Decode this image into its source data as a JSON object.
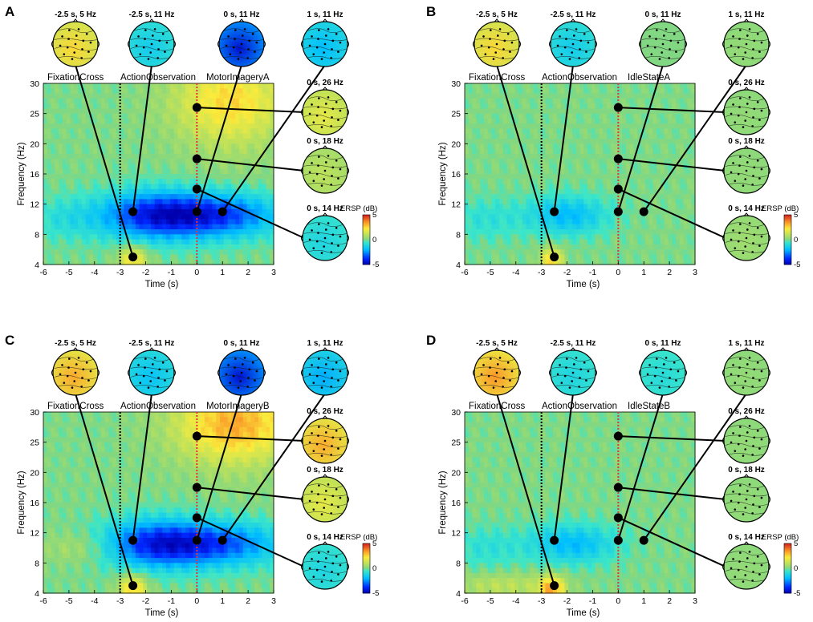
{
  "colors": {
    "zero": "#7fd49a",
    "marker": "#000000",
    "onset_line": "#e8323c",
    "fixation_line": "#000000"
  },
  "chart_data": [
    {
      "panel": "A",
      "type": "heatmap",
      "condition_labels": [
        "FixationCross",
        "ActionObservation",
        "MotorImageryA"
      ],
      "xlabel": "Time (s)",
      "ylabel": "Frequency (Hz)",
      "xlim": [
        -6,
        3
      ],
      "x_ticks": [
        "-6",
        "-5",
        "-4",
        "-3",
        "-2",
        "-1",
        "0",
        "1",
        "2",
        "3"
      ],
      "y_ticks": [
        "4",
        "8",
        "12",
        "16",
        "20",
        "25",
        "30"
      ],
      "colorbar": {
        "title": "ERSP (dB)",
        "ticks": [
          "5",
          "0",
          "-5"
        ],
        "range": [
          -5,
          5
        ]
      },
      "vertical_lines": [
        {
          "t": -3,
          "style": "black-dotted"
        },
        {
          "t": 0,
          "style": "red-dotted"
        }
      ],
      "blobs": [
        {
          "t": -1.5,
          "f": 10.5,
          "sdt": 1.6,
          "sdf": 2.2,
          "amp": -4.2
        },
        {
          "t": 1.2,
          "f": 10.5,
          "sdt": 1.6,
          "sdf": 2.0,
          "amp": -2.8
        },
        {
          "t": 1.3,
          "f": 27,
          "sdt": 1.5,
          "sdf": 5,
          "amp": 2.5
        },
        {
          "t": -2.5,
          "f": 4.5,
          "sdt": 0.4,
          "sdf": 1.4,
          "amp": 2.2
        },
        {
          "t": -5.2,
          "f": 10,
          "sdt": 1.0,
          "sdf": 2.0,
          "amp": -0.8
        }
      ],
      "topomaps": [
        {
          "title": "-2.5 s, 5 Hz",
          "t": -2.5,
          "f": 5,
          "value": 2.5
        },
        {
          "title": "-2.5 s, 11 Hz",
          "t": -2.5,
          "f": 11,
          "value": -1.5
        },
        {
          "title": "0 s, 11 Hz",
          "t": 0,
          "f": 11,
          "value": -4.5
        },
        {
          "title": "1 s, 11 Hz",
          "t": 1,
          "f": 11,
          "value": -2.0
        },
        {
          "title": "0 s, 26 Hz",
          "t": 0,
          "f": 26,
          "value": 1.8
        },
        {
          "title": "0 s, 18 Hz",
          "t": 0,
          "f": 18,
          "value": 1.0
        },
        {
          "title": "0 s, 14 Hz",
          "t": 0,
          "f": 14,
          "value": -1.2
        }
      ]
    },
    {
      "panel": "B",
      "type": "heatmap",
      "condition_labels": [
        "FixationCross",
        "ActionObservation",
        "IdleStateA"
      ],
      "xlabel": "Time (s)",
      "ylabel": "Frequency (Hz)",
      "xlim": [
        -6,
        3
      ],
      "x_ticks": [
        "-6",
        "-5",
        "-4",
        "-3",
        "-2",
        "-1",
        "0",
        "1",
        "2",
        "3"
      ],
      "y_ticks": [
        "4",
        "8",
        "12",
        "16",
        "20",
        "25",
        "30"
      ],
      "colorbar": {
        "title": "ERSP (dB)",
        "ticks": [
          "5",
          "0",
          "-5"
        ],
        "range": [
          -5,
          5
        ]
      },
      "vertical_lines": [
        {
          "t": -3,
          "style": "black-dotted"
        },
        {
          "t": 0,
          "style": "red-dotted"
        }
      ],
      "blobs": [
        {
          "t": -2.0,
          "f": 10.5,
          "sdt": 1.1,
          "sdf": 1.8,
          "amp": -2.0
        },
        {
          "t": -2.6,
          "f": 4.5,
          "sdt": 0.3,
          "sdf": 1.2,
          "amp": 2.5
        },
        {
          "t": -5.2,
          "f": 10,
          "sdt": 1.0,
          "sdf": 2.0,
          "amp": -0.8
        }
      ],
      "topomaps": [
        {
          "title": "-2.5 s, 5 Hz",
          "t": -2.5,
          "f": 5,
          "value": 2.5
        },
        {
          "title": "-2.5 s, 11 Hz",
          "t": -2.5,
          "f": 11,
          "value": -1.5
        },
        {
          "title": "0 s, 11 Hz",
          "t": 0,
          "f": 11,
          "value": 0.0
        },
        {
          "title": "1 s, 11 Hz",
          "t": 1,
          "f": 11,
          "value": 0.3
        },
        {
          "title": "0 s, 26 Hz",
          "t": 0,
          "f": 26,
          "value": 0.3
        },
        {
          "title": "0 s, 18 Hz",
          "t": 0,
          "f": 18,
          "value": 0.3
        },
        {
          "title": "0 s, 14 Hz",
          "t": 0,
          "f": 14,
          "value": 0.5
        }
      ]
    },
    {
      "panel": "C",
      "type": "heatmap",
      "condition_labels": [
        "FixationCross",
        "ActionObservation",
        "MotorImageryB"
      ],
      "xlabel": "Time (s)",
      "ylabel": "Frequency (Hz)",
      "xlim": [
        -6,
        3
      ],
      "x_ticks": [
        "-6",
        "-5",
        "-4",
        "-3",
        "-2",
        "-1",
        "0",
        "1",
        "2",
        "3"
      ],
      "y_ticks": [
        "4",
        "8",
        "12",
        "16",
        "20",
        "25",
        "30"
      ],
      "colorbar": {
        "title": "ERSP (dB)",
        "ticks": [
          "5",
          "0",
          "-5"
        ],
        "range": [
          -5,
          5
        ]
      },
      "vertical_lines": [
        {
          "t": -3,
          "style": "black-dotted"
        },
        {
          "t": 0,
          "style": "red-dotted"
        }
      ],
      "blobs": [
        {
          "t": -1.5,
          "f": 10.5,
          "sdt": 1.5,
          "sdf": 2.2,
          "amp": -4.0
        },
        {
          "t": 1.2,
          "f": 10.5,
          "sdt": 1.6,
          "sdf": 2.0,
          "amp": -2.7
        },
        {
          "t": 1.5,
          "f": 28,
          "sdt": 1.6,
          "sdf": 4.5,
          "amp": 3.2
        },
        {
          "t": -2.5,
          "f": 4.5,
          "sdt": 0.4,
          "sdf": 1.4,
          "amp": 2.5
        },
        {
          "t": -4.5,
          "f": 10,
          "sdt": 1.0,
          "sdf": 1.5,
          "amp": 0.8
        }
      ],
      "topomaps": [
        {
          "title": "-2.5 s, 5 Hz",
          "t": -2.5,
          "f": 5,
          "value": 3.2
        },
        {
          "title": "-2.5 s, 11 Hz",
          "t": -2.5,
          "f": 11,
          "value": -1.8
        },
        {
          "title": "0 s, 11 Hz",
          "t": 0,
          "f": 11,
          "value": -4.5
        },
        {
          "title": "1 s, 11 Hz",
          "t": 1,
          "f": 11,
          "value": -2.2
        },
        {
          "title": "0 s, 26 Hz",
          "t": 0,
          "f": 26,
          "value": 3.2
        },
        {
          "title": "0 s, 18 Hz",
          "t": 0,
          "f": 18,
          "value": 1.8
        },
        {
          "title": "0 s, 14 Hz",
          "t": 0,
          "f": 14,
          "value": -1.2
        }
      ]
    },
    {
      "panel": "D",
      "type": "heatmap",
      "condition_labels": [
        "FixationCross",
        "ActionObservation",
        "IdleStateB"
      ],
      "xlabel": "Time (s)",
      "ylabel": "Frequency (Hz)",
      "xlim": [
        -6,
        3
      ],
      "x_ticks": [
        "-6",
        "-5",
        "-4",
        "-3",
        "-2",
        "-1",
        "0",
        "1",
        "2",
        "3"
      ],
      "y_ticks": [
        "4",
        "8",
        "12",
        "16",
        "20",
        "25",
        "30"
      ],
      "colorbar": {
        "title": "ERSP (dB)",
        "ticks": [
          "5",
          "0",
          "-5"
        ],
        "range": [
          -5,
          5
        ]
      },
      "vertical_lines": [
        {
          "t": -3,
          "style": "black-dotted"
        },
        {
          "t": 0,
          "style": "red-dotted"
        }
      ],
      "blobs": [
        {
          "t": -1.8,
          "f": 10.5,
          "sdt": 1.2,
          "sdf": 1.8,
          "amp": -2.0
        },
        {
          "t": -2.6,
          "f": 4.5,
          "sdt": 0.35,
          "sdf": 1.2,
          "amp": 3.0
        },
        {
          "t": -4.5,
          "f": 5,
          "sdt": 1.5,
          "sdf": 1.2,
          "amp": 1.0
        },
        {
          "t": -5.2,
          "f": 10,
          "sdt": 1.0,
          "sdf": 2.0,
          "amp": -0.8
        }
      ],
      "topomaps": [
        {
          "title": "-2.5 s, 5 Hz",
          "t": -2.5,
          "f": 5,
          "value": 3.5
        },
        {
          "title": "-2.5 s, 11 Hz",
          "t": -2.5,
          "f": 11,
          "value": -1.2
        },
        {
          "title": "0 s, 11 Hz",
          "t": 0,
          "f": 11,
          "value": -1.0
        },
        {
          "title": "1 s, 11 Hz",
          "t": 1,
          "f": 11,
          "value": 0.3
        },
        {
          "title": "0 s, 26 Hz",
          "t": 0,
          "f": 26,
          "value": 0.3
        },
        {
          "title": "0 s, 18 Hz",
          "t": 0,
          "f": 18,
          "value": 0.3
        },
        {
          "title": "0 s, 14 Hz",
          "t": 0,
          "f": 14,
          "value": 0.3
        }
      ]
    }
  ]
}
